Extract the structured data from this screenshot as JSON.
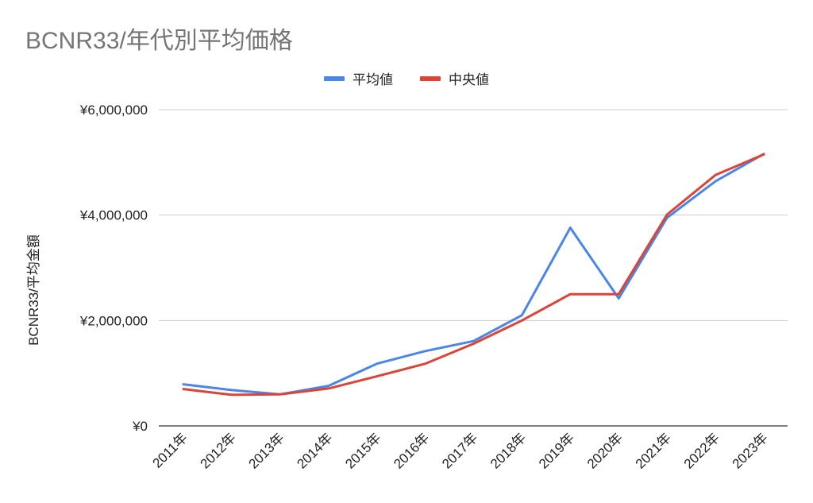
{
  "chart_data": {
    "type": "line",
    "title": "BCNR33/年代別平均価格",
    "xlabel": "",
    "ylabel": "BCNR33/平均金額",
    "categories": [
      "2011年",
      "2012年",
      "2013年",
      "2014年",
      "2015年",
      "2016年",
      "2017年",
      "2018年",
      "2019年",
      "2020年",
      "2021年",
      "2022年",
      "2023年"
    ],
    "series": [
      {
        "name": "平均値",
        "color": "#4a86e8",
        "values": [
          790000,
          680000,
          600000,
          760000,
          1180000,
          1420000,
          1610000,
          2100000,
          3760000,
          2420000,
          3950000,
          4640000,
          5160000
        ]
      },
      {
        "name": "中央値",
        "color": "#db4437",
        "values": [
          700000,
          590000,
          600000,
          710000,
          940000,
          1180000,
          1560000,
          2000000,
          2500000,
          2500000,
          4010000,
          4760000,
          5150000
        ]
      }
    ],
    "ylim": [
      0,
      6000000
    ],
    "yticks": [
      0,
      2000000,
      4000000,
      6000000
    ],
    "ytick_labels": [
      "¥0",
      "¥2,000,000",
      "¥4,000,000",
      "¥6,000,000"
    ],
    "grid": true,
    "legend_position": "top-center"
  }
}
